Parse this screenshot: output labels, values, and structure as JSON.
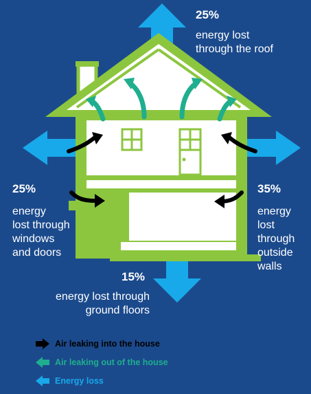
{
  "roof": {
    "pct": "25%",
    "line1": "energy lost",
    "line2": "through the roof"
  },
  "windows": {
    "pct": "25%",
    "lines": [
      "energy",
      "lost through",
      "windows",
      "and doors"
    ]
  },
  "walls": {
    "pct": "35%",
    "lines": [
      "energy",
      "lost",
      "through",
      "outside",
      "walls"
    ]
  },
  "floors": {
    "pct": "15%",
    "line1": "energy lost through",
    "line2": "ground floors"
  },
  "legend": [
    {
      "label": "Air leaking into the house",
      "color": "#000000",
      "icon": "arrow-right-icon"
    },
    {
      "label": "Air leaking out of the house",
      "color": "#1fae8e",
      "icon": "arrow-left-icon"
    },
    {
      "label": "Energy loss",
      "color": "#18a9ea",
      "icon": "arrow-left-icon"
    }
  ],
  "colors": {
    "background": "#1b4a8c",
    "house_green": "#8cc63f",
    "energy_loss": "#18a9ea",
    "air_out": "#1fae8e",
    "air_in": "#000000",
    "house_fill": "#ffffff"
  }
}
